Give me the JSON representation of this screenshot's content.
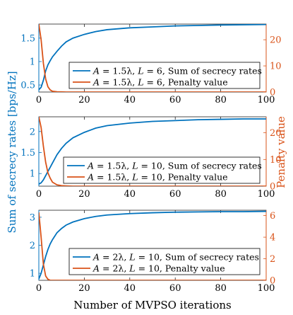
{
  "colors": {
    "left_axis": "#0072BD",
    "right_axis": "#D95319",
    "text": "#000000"
  },
  "ylabel_left": "Sum of secrecy rates [bps/Hz]",
  "ylabel_right": "Penalty value",
  "xlabel": "Number of MVPSO iterations",
  "chart_data": [
    {
      "type": "line",
      "x": [
        0,
        1,
        2,
        3,
        4,
        5,
        6,
        8,
        10,
        12,
        15,
        20,
        25,
        30,
        40,
        50,
        60,
        70,
        80,
        90,
        100
      ],
      "xlim": [
        0,
        100
      ],
      "xticks": [
        "0",
        "20",
        "40",
        "60",
        "80",
        "100"
      ],
      "xtick_values": [
        0,
        20,
        40,
        60,
        80,
        100
      ],
      "ylim_left": [
        0.35,
        1.8
      ],
      "yticks_left": [
        "0.5",
        "1",
        "1.5"
      ],
      "ytick_values_left": [
        0.5,
        1,
        1.5
      ],
      "ylim_right": [
        0,
        26
      ],
      "yticks_right": [
        "0",
        "10",
        "20"
      ],
      "ytick_values_right": [
        0,
        10,
        20
      ],
      "series": [
        {
          "name": "A = 1.5λ, L = 6, Sum of secrecy rates",
          "legend_parts": [
            "A",
            " = 1.5λ, ",
            "L",
            " = 6, Sum of secrecy rates"
          ],
          "axis": "left",
          "color": "#0072BD",
          "values": [
            0.4,
            0.45,
            0.6,
            0.8,
            0.93,
            1.02,
            1.1,
            1.22,
            1.33,
            1.42,
            1.5,
            1.58,
            1.64,
            1.68,
            1.72,
            1.74,
            1.76,
            1.77,
            1.78,
            1.785,
            1.79
          ]
        },
        {
          "name": "A = 1.5λ, L = 6, Penalty value",
          "legend_parts": [
            "A",
            " = 1.5λ, ",
            "L",
            " = 6, Penalty value"
          ],
          "axis": "right",
          "color": "#D95319",
          "values": [
            26,
            20,
            11,
            5,
            2,
            0.8,
            0.3,
            0.1,
            0.05,
            0,
            0,
            0,
            0,
            0,
            0,
            0,
            0,
            0,
            0,
            0,
            0
          ]
        }
      ]
    },
    {
      "type": "line",
      "x": [
        0,
        1,
        2,
        3,
        4,
        5,
        6,
        8,
        10,
        12,
        15,
        20,
        25,
        30,
        40,
        50,
        60,
        70,
        80,
        90,
        100
      ],
      "xlim": [
        0,
        100
      ],
      "xticks": [
        "0",
        "20",
        "40",
        "60",
        "80",
        "100"
      ],
      "xtick_values": [
        0,
        20,
        40,
        60,
        80,
        100
      ],
      "ylim_left": [
        0.7,
        2.35
      ],
      "yticks_left": [
        "1",
        "1.5",
        "2"
      ],
      "ytick_values_left": [
        1,
        1.5,
        2
      ],
      "ylim_right": [
        0,
        26
      ],
      "yticks_right": [
        "0",
        "10",
        "20"
      ],
      "ytick_values_right": [
        0,
        10,
        20
      ],
      "series": [
        {
          "name": "A = 1.5λ, L = 10, Sum of secrecy rates",
          "legend_parts": [
            "A",
            " = 1.5λ, ",
            "L",
            " = 10, Sum of secrecy rates"
          ],
          "axis": "left",
          "color": "#0072BD",
          "values": [
            0.75,
            0.78,
            0.85,
            0.95,
            1.05,
            1.15,
            1.25,
            1.45,
            1.6,
            1.72,
            1.85,
            1.98,
            2.08,
            2.14,
            2.2,
            2.24,
            2.26,
            2.28,
            2.29,
            2.3,
            2.3
          ]
        },
        {
          "name": "A = 1.5λ, L = 10, Penalty value",
          "legend_parts": [
            "A",
            " = 1.5λ, ",
            "L",
            " = 10, Penalty value"
          ],
          "axis": "right",
          "color": "#D95319",
          "values": [
            26,
            22,
            15,
            9,
            5,
            3,
            1.5,
            0.5,
            0.2,
            0.1,
            0,
            0,
            0,
            0,
            0,
            0,
            0,
            0,
            0,
            0,
            0
          ]
        }
      ]
    },
    {
      "type": "line",
      "x": [
        0,
        1,
        2,
        3,
        4,
        5,
        6,
        8,
        10,
        12,
        15,
        20,
        25,
        30,
        40,
        50,
        60,
        70,
        80,
        90,
        100
      ],
      "xlim": [
        0,
        100
      ],
      "xticks": [
        "0",
        "20",
        "40",
        "60",
        "80",
        "100"
      ],
      "xtick_values": [
        0,
        20,
        40,
        60,
        80,
        100
      ],
      "ylim_left": [
        0.75,
        3.25
      ],
      "yticks_left": [
        "1",
        "2",
        "3"
      ],
      "ytick_values_left": [
        1,
        2,
        3
      ],
      "ylim_right": [
        0,
        6.5
      ],
      "yticks_right": [
        "0",
        "2",
        "4",
        "6"
      ],
      "ytick_values_right": [
        0,
        2,
        4,
        6
      ],
      "series": [
        {
          "name": "A = 2λ, L = 10, Sum of secrecy rates",
          "legend_parts": [
            "A",
            " = 2λ, ",
            "L",
            " = 10, Sum of secrecy rates"
          ],
          "axis": "left",
          "color": "#0072BD",
          "values": [
            0.8,
            1.0,
            1.3,
            1.6,
            1.85,
            2.05,
            2.2,
            2.45,
            2.6,
            2.72,
            2.83,
            2.95,
            3.03,
            3.08,
            3.13,
            3.16,
            3.18,
            3.19,
            3.2,
            3.2,
            3.21
          ]
        },
        {
          "name": "A = 2λ, L = 10, Penalty value",
          "legend_parts": [
            "A",
            " = 2λ, ",
            "L",
            " = 10, Penalty value"
          ],
          "axis": "right",
          "color": "#D95319",
          "values": [
            6.3,
            4.0,
            1.5,
            0.4,
            0.1,
            0,
            0,
            0,
            0,
            0,
            0,
            0,
            0,
            0,
            0,
            0,
            0,
            0,
            0,
            0,
            0
          ]
        }
      ]
    }
  ]
}
